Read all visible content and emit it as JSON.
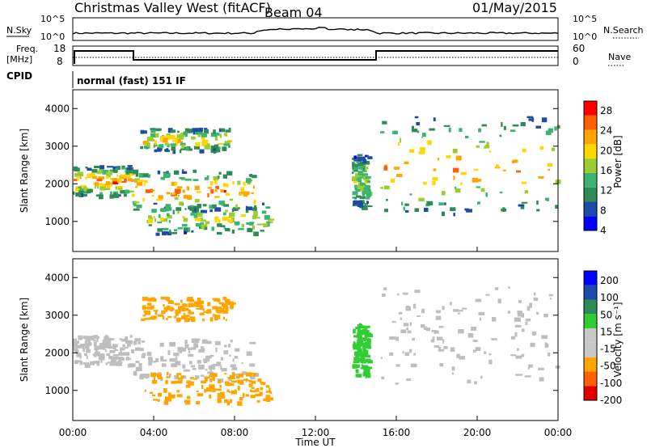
{
  "header": {
    "title": "Christmas Valley West (fitACF)",
    "beam": "Beam 04",
    "date": "01/May/2015"
  },
  "panels": {
    "nsky_label": "N.Sky",
    "nsky_ticks": [
      "10^5",
      "10^0"
    ],
    "nsearch_label": "N.Search",
    "nsearch_ticks": [
      "10^5",
      "10^0"
    ],
    "freq_label_1": "Freq.",
    "freq_label_2": "[MHz]",
    "freq_ticks": [
      "18",
      "8"
    ],
    "nave_label": "Nave",
    "nave_ticks": [
      "60",
      "0"
    ],
    "cpid_label": "CPID",
    "cpid_text": "normal (fast) 151 IF"
  },
  "colors": {
    "power": [
      "#0000ff",
      "#1c4ca6",
      "#2e8b57",
      "#3cb371",
      "#9acd32",
      "#ffd700",
      "#ffa500",
      "#ff6000",
      "#ff0000"
    ],
    "velocity": [
      "#e00000",
      "#ff6000",
      "#ffa500",
      "#c8c8c8",
      "#c8c8c8",
      "#32cd32",
      "#2e8b57",
      "#1c4ca6",
      "#0000ff"
    ],
    "ground_scatter": "#bebebe"
  },
  "chart_data": [
    {
      "type": "heatmap",
      "name": "power",
      "ylabel": "Slant Range [km]",
      "ylim": [
        200,
        4500
      ],
      "yticks": [
        "4000",
        "3000",
        "2000",
        "1000"
      ],
      "xlim": [
        "00:00",
        "24:00"
      ],
      "colorbar_label": "Power [dB]",
      "colorbar_ticks": [
        "28",
        "24",
        "20",
        "16",
        "12",
        "8",
        "4"
      ],
      "colorbar_range": [
        0,
        30
      ],
      "bands": [
        {
          "start": 0.0,
          "end": 2.9,
          "range": [
            1700,
            2500
          ],
          "level": 22
        },
        {
          "start": 2.9,
          "end": 9.0,
          "range": [
            1300,
            2400
          ],
          "level": 22
        },
        {
          "start": 3.3,
          "end": 7.8,
          "range": [
            2900,
            3500
          ],
          "level": 18
        },
        {
          "start": 3.5,
          "end": 9.8,
          "range": [
            700,
            1500
          ],
          "level": 14
        },
        {
          "start": 13.8,
          "end": 14.6,
          "range": [
            1400,
            2800
          ],
          "level": 12
        },
        {
          "start": 15.2,
          "end": 24.0,
          "range": [
            1200,
            3800
          ],
          "level": 20
        }
      ]
    },
    {
      "type": "heatmap",
      "name": "velocity",
      "ylabel": "Slant Range [km]",
      "ylim": [
        200,
        4500
      ],
      "yticks": [
        "4000",
        "3000",
        "2000",
        "1000"
      ],
      "xlabel": "Time UT",
      "xticks": [
        "00:00",
        "04:00",
        "08:00",
        "12:00",
        "16:00",
        "20:00",
        "00:00"
      ],
      "colorbar_label": "Velocity [m s⁻¹]",
      "colorbar_ticks": [
        "200",
        "100",
        "50",
        "15",
        "-15",
        "-50",
        "-100",
        "-200"
      ],
      "bands": [
        {
          "start": 0.0,
          "end": 2.9,
          "range": [
            1700,
            2500
          ],
          "velocity": 0
        },
        {
          "start": 2.9,
          "end": 9.0,
          "range": [
            1300,
            2400
          ],
          "velocity": 0
        },
        {
          "start": 3.3,
          "end": 7.8,
          "range": [
            2900,
            3500
          ],
          "velocity": -60
        },
        {
          "start": 3.5,
          "end": 9.8,
          "range": [
            700,
            1500
          ],
          "velocity": -60
        },
        {
          "start": 13.8,
          "end": 14.6,
          "range": [
            1400,
            2800
          ],
          "velocity": 30
        },
        {
          "start": 15.2,
          "end": 24.0,
          "range": [
            1200,
            3800
          ],
          "velocity": 0
        }
      ]
    }
  ]
}
